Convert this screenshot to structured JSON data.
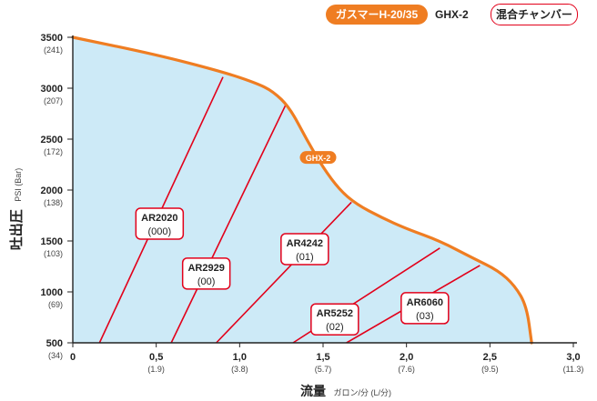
{
  "legend": {
    "gas_booster": "ガスマーH-20/35",
    "gas_booster_model": "GHX-2",
    "mixing_chamber": "混合チャンバー"
  },
  "chart_data": {
    "type": "line",
    "ylabel": "吐出圧",
    "ylabel_unit": "PSI (Bar)",
    "xlabel": "流量",
    "xlabel_unit": "ガロン/分 (L/分)",
    "xlim": [
      0,
      3.0
    ],
    "ylim": [
      500,
      3500
    ],
    "x_ticks": [
      {
        "value": 0,
        "label": "0",
        "sub": ""
      },
      {
        "value": 0.5,
        "label": "0,5",
        "sub": "(1.9)"
      },
      {
        "value": 1.0,
        "label": "1,0",
        "sub": "(3.8)"
      },
      {
        "value": 1.5,
        "label": "1,5",
        "sub": "(5.7)"
      },
      {
        "value": 2.0,
        "label": "2,0",
        "sub": "(7.6)"
      },
      {
        "value": 2.5,
        "label": "2,5",
        "sub": "(9.5)"
      },
      {
        "value": 3.0,
        "label": "3,0",
        "sub": "(11.3)"
      }
    ],
    "y_ticks": [
      {
        "value": 3500,
        "label": "3500",
        "sub": "(241)"
      },
      {
        "value": 3000,
        "label": "3000",
        "sub": "(207)"
      },
      {
        "value": 2500,
        "label": "2500",
        "sub": "(172)"
      },
      {
        "value": 2000,
        "label": "2000",
        "sub": "(138)"
      },
      {
        "value": 1500,
        "label": "1500",
        "sub": "(103)"
      },
      {
        "value": 1000,
        "label": "1000",
        "sub": "(69)"
      },
      {
        "value": 500,
        "label": "500",
        "sub": "(34)"
      }
    ],
    "envelope": {
      "name": "GHX-2",
      "color": "#ef7d22",
      "fill": "#cdeaf7",
      "points": [
        [
          0,
          3500
        ],
        [
          0.5,
          3330
        ],
        [
          0.9,
          3160
        ],
        [
          1.1,
          3050
        ],
        [
          1.2,
          2970
        ],
        [
          1.3,
          2810
        ],
        [
          1.4,
          2500
        ],
        [
          1.5,
          2220
        ],
        [
          1.6,
          2000
        ],
        [
          1.7,
          1860
        ],
        [
          1.85,
          1730
        ],
        [
          2.0,
          1620
        ],
        [
          2.2,
          1500
        ],
        [
          2.4,
          1330
        ],
        [
          2.55,
          1210
        ],
        [
          2.65,
          1060
        ],
        [
          2.72,
          860
        ],
        [
          2.75,
          500
        ]
      ]
    },
    "chamber_lines": [
      {
        "name": "AR2020",
        "code": "(000)",
        "from": [
          0.16,
          500
        ],
        "to": [
          0.9,
          3110
        ],
        "label_at": [
          0.52,
          1670
        ],
        "color": "#e2001a"
      },
      {
        "name": "AR2929",
        "code": "(00)",
        "from": [
          0.59,
          500
        ],
        "to": [
          1.28,
          2850
        ],
        "label_at": [
          0.8,
          1180
        ],
        "color": "#e2001a"
      },
      {
        "name": "AR4242",
        "code": "(01)",
        "from": [
          0.86,
          500
        ],
        "to": [
          1.67,
          1880
        ],
        "label_at": [
          1.39,
          1420
        ],
        "color": "#e2001a"
      },
      {
        "name": "AR5252",
        "code": "(02)",
        "from": [
          1.32,
          500
        ],
        "to": [
          2.2,
          1430
        ],
        "label_at": [
          1.57,
          730
        ],
        "color": "#e2001a"
      },
      {
        "name": "AR6060",
        "code": "(03)",
        "from": [
          1.64,
          500
        ],
        "to": [
          2.44,
          1260
        ],
        "label_at": [
          2.11,
          840
        ],
        "color": "#e2001a"
      }
    ],
    "curve_label": {
      "text": "GHX-2",
      "at": [
        1.47,
        2320
      ]
    },
    "grid": false
  }
}
